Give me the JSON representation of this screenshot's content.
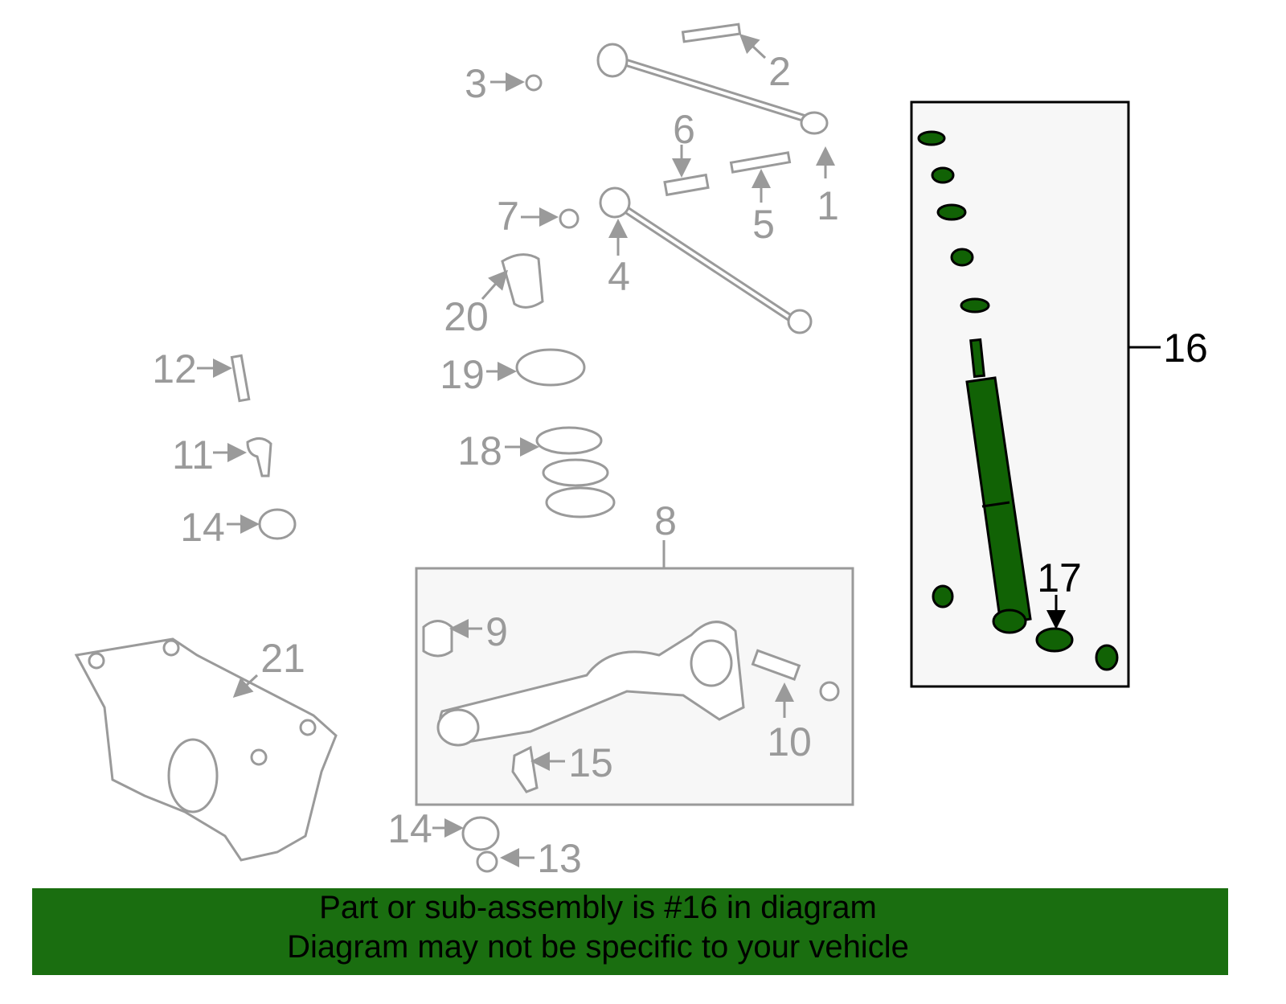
{
  "diagram": {
    "labels": {
      "p1": "1",
      "p2": "2",
      "p3": "3",
      "p4": "4",
      "p5": "5",
      "p6": "6",
      "p7": "7",
      "p8": "8",
      "p9": "9",
      "p10": "10",
      "p11": "11",
      "p12": "12",
      "p13": "13",
      "p14a": "14",
      "p14b": "14",
      "p15": "15",
      "p16": "16",
      "p17": "17",
      "p18": "18",
      "p19": "19",
      "p20": "20",
      "p21": "21"
    },
    "highlight_part": "16",
    "colors": {
      "highlight": "#116205",
      "banner": "#1a6e10",
      "parts": "#9a9a9a",
      "box_fill": "#f7f7f7"
    }
  },
  "banner": {
    "line1": "Part or sub-assembly is #16 in diagram",
    "line2": "Diagram may not be specific to your vehicle"
  }
}
